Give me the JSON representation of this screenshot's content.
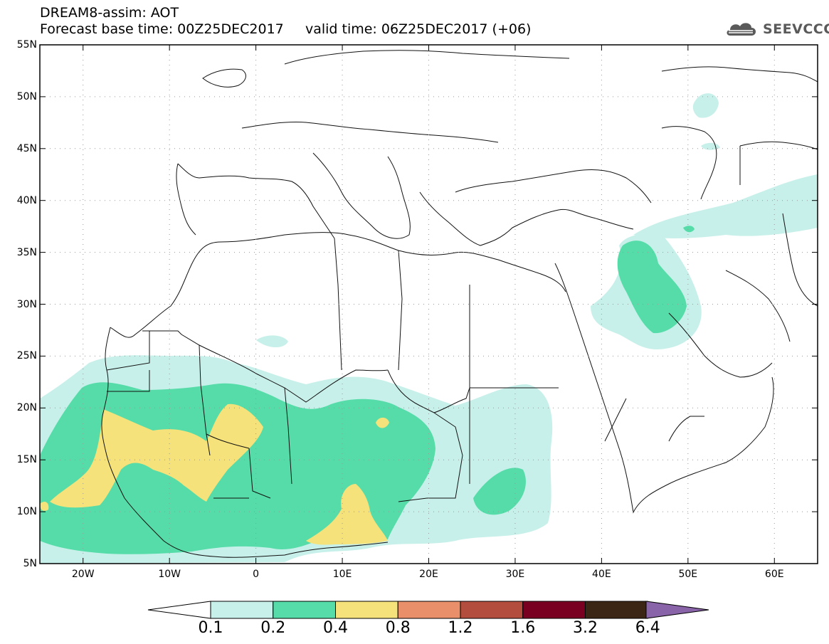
{
  "header": {
    "title_line1": "DREAM8-assim: AOT",
    "title_line2": "Forecast base time: 00Z25DEC2017     valid time: 06Z25DEC2017 (+06)"
  },
  "logo": {
    "icon": "cloud-icon",
    "text": "SEEVCCC"
  },
  "map": {
    "variable": "AOT",
    "lon_range": [
      -25,
      65
    ],
    "lat_range": [
      5,
      55
    ],
    "lat_labels": [
      "5N",
      "10N",
      "15N",
      "20N",
      "25N",
      "30N",
      "35N",
      "40N",
      "45N",
      "50N",
      "55N"
    ],
    "lon_labels": [
      "20W",
      "10W",
      "0",
      "10E",
      "20E",
      "30E",
      "40E",
      "50E",
      "60E"
    ],
    "grid": true
  },
  "colorbar": {
    "levels": [
      "0.1",
      "0.2",
      "0.4",
      "0.8",
      "1.2",
      "1.6",
      "3.2",
      "6.4"
    ],
    "colors": [
      "#ffffff",
      "#c8f0ea",
      "#55dca8",
      "#f5e27a",
      "#e9906a",
      "#b34d3e",
      "#7a0022",
      "#3b2515",
      "#8a64a8"
    ]
  }
}
